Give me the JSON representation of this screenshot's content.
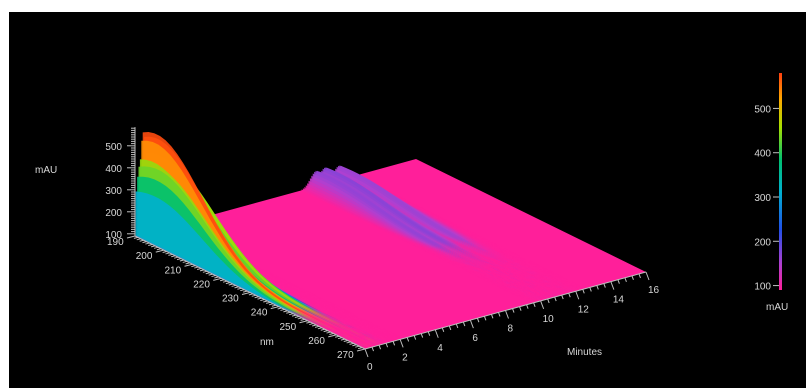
{
  "chart_data": {
    "type": "surface3d",
    "title": "",
    "z_axis": {
      "label": "mAU",
      "ticks": [
        100,
        200,
        300,
        400,
        500
      ]
    },
    "wavelength_axis": {
      "label": "nm",
      "ticks": [
        190,
        200,
        210,
        220,
        230,
        240,
        250,
        260,
        270
      ],
      "range": [
        190,
        270
      ]
    },
    "time_axis": {
      "label": "Minutes",
      "ticks": [
        0,
        2,
        4,
        6,
        8,
        10,
        12,
        14,
        16
      ],
      "range": [
        0,
        16
      ]
    },
    "colorbar": {
      "unit": "mAU",
      "ticks": [
        100,
        200,
        300,
        400,
        500
      ],
      "range": [
        90,
        580
      ]
    },
    "baseline_color": "#ff1f9a",
    "background_color": "#000000",
    "peaks": [
      {
        "retention_min": 0.25,
        "max_mAU": 440,
        "lambda_max_nm": 197
      },
      {
        "retention_min": 0.45,
        "max_mAU": 575,
        "lambda_max_nm": 195
      },
      {
        "retention_min": 0.85,
        "max_mAU": 455,
        "lambda_max_nm": 197
      },
      {
        "retention_min": 10.3,
        "max_mAU": 165,
        "lambda_max_nm": 195
      },
      {
        "retention_min": 10.8,
        "max_mAU": 170,
        "lambda_max_nm": 195
      },
      {
        "retention_min": 11.6,
        "max_mAU": 160,
        "lambda_max_nm": 195
      }
    ]
  }
}
